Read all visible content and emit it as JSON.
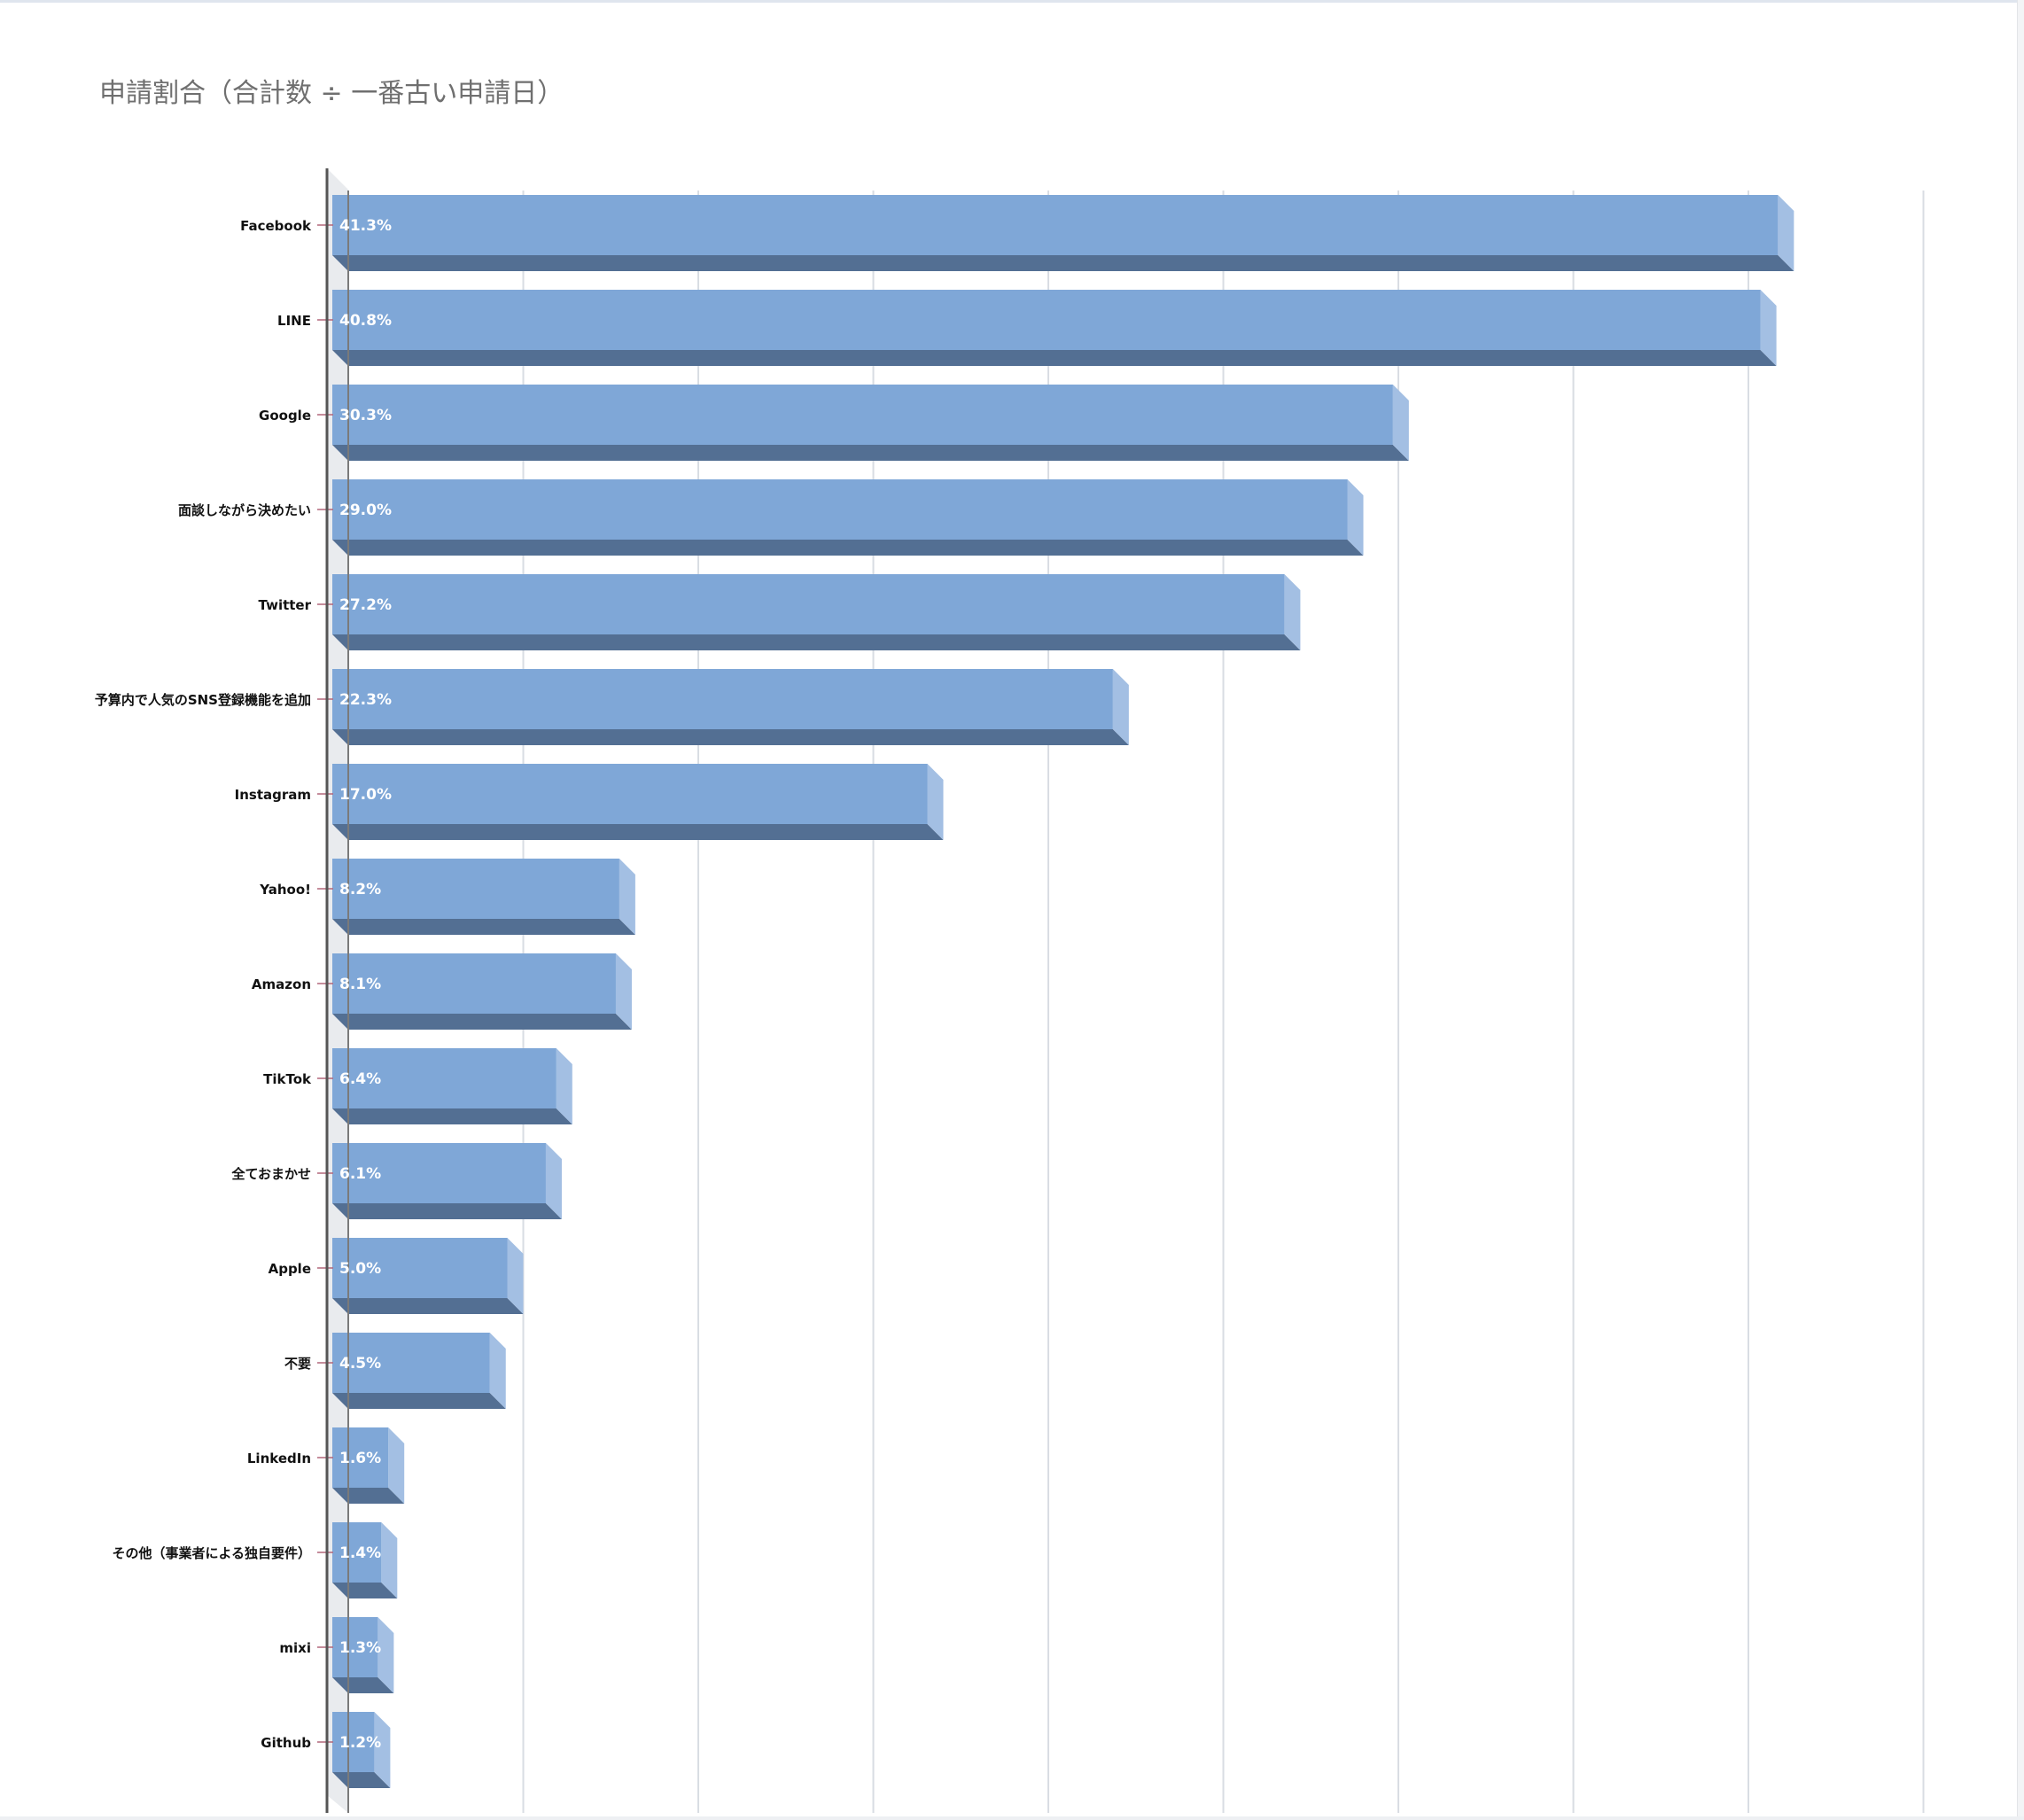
{
  "title": "申請割合（合計数 ÷ 一番古い申請日）",
  "colors": {
    "bar_front": "#7fa7d7",
    "bar_bottom": "#536f93",
    "bar_side": "#a3bfe3",
    "gridline": "#d9dde3",
    "axis": "#555555",
    "tick_mark": "#b2667a",
    "label_text": "#111111",
    "value_text": "#ffffff"
  },
  "chart_data": {
    "type": "bar",
    "orientation": "horizontal",
    "style": "3d",
    "title": "申請割合（合計数 ÷ 一番古い申請日）",
    "xlabel": "",
    "ylabel": "",
    "grid": true,
    "xlim": [
      0,
      45
    ],
    "categories": [
      "Facebook",
      "LINE",
      "Google",
      "面談しながら決めたい",
      "Twitter",
      "予算内で人気のSNS登録機能を追加",
      "Instagram",
      "Yahoo!",
      "Amazon",
      "TikTok",
      "全ておまかせ",
      "Apple",
      "不要",
      "LinkedIn",
      "その他（事業者による独自要件）",
      "mixi",
      "Github"
    ],
    "values": [
      41.3,
      40.8,
      30.3,
      29.0,
      27.2,
      22.3,
      17.0,
      8.2,
      8.1,
      6.4,
      6.1,
      5.0,
      4.5,
      1.6,
      1.4,
      1.3,
      1.2
    ],
    "data_labels": [
      "41.3%",
      "40.8%",
      "30.3%",
      "29.0%",
      "27.2%",
      "22.3%",
      "17.0%",
      "8.2%",
      "8.1%",
      "6.4%",
      "6.1%",
      "5.0%",
      "4.5%",
      "1.6%",
      "1.4%",
      "1.3%",
      "1.2%"
    ]
  }
}
